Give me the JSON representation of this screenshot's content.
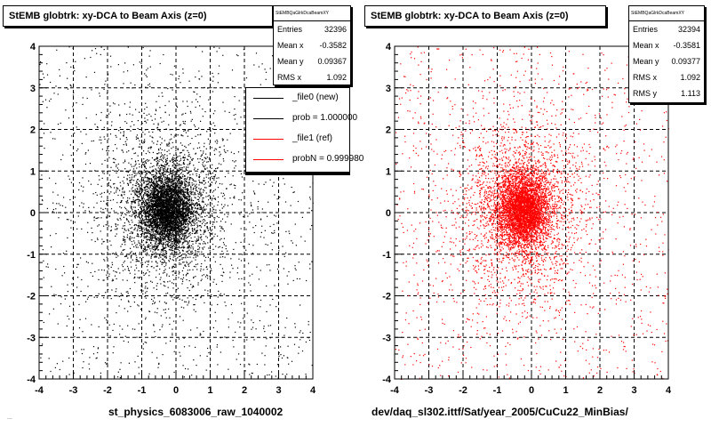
{
  "footer_text": "...",
  "chart_data": [
    {
      "type": "scatter",
      "title": "StEMB globtrk: xy-DCA to Beam Axis (z=0)",
      "xlabel": "st_physics_6083006_raw_1040002",
      "ylabel": "",
      "xlim": [
        -4,
        4
      ],
      "ylim": [
        -4,
        4
      ],
      "xticks": [
        "-4",
        "-3",
        "-2",
        "-1",
        "0",
        "1",
        "2",
        "3",
        "4"
      ],
      "yticks": [
        "-4",
        "-3",
        "-2",
        "-1",
        "0",
        "1",
        "2",
        "3",
        "4"
      ],
      "grid": true,
      "color": "#000000",
      "stats": {
        "name": "StEMBQaGlrkDcaBeamXY",
        "rows": [
          {
            "label": "Entries",
            "value": "32396"
          },
          {
            "label": "Mean x",
            "value": "-0.3582"
          },
          {
            "label": "Mean y",
            "value": "0.09367"
          },
          {
            "label": "RMS x",
            "value": "1.092"
          }
        ]
      },
      "legend": {
        "placement": "top-right",
        "entries": [
          {
            "label": "_file0 (new)",
            "color": "#000000"
          },
          {
            "label": "prob = 1.000000",
            "color": "#000000"
          },
          {
            "label": "_file1 (ref)",
            "color": "#ff0000"
          },
          {
            "label": "probN = 0.999980",
            "color": "#ff0000"
          }
        ]
      },
      "distribution": {
        "mean_x": -0.3582,
        "mean_y": 0.09367,
        "core_sigma": 0.45,
        "entries": 32396
      }
    },
    {
      "type": "scatter",
      "title": "StEMB globtrk: xy-DCA to Beam Axis (z=0)",
      "xlabel": "dev/daq_sl302.ittf/Sat/year_2005/CuCu22_MinBias/",
      "ylabel": "",
      "xlim": [
        -4,
        4
      ],
      "ylim": [
        -4,
        4
      ],
      "xticks": [
        "-4",
        "-3",
        "-2",
        "-1",
        "0",
        "1",
        "2",
        "3",
        "4"
      ],
      "yticks": [
        "-4",
        "-3",
        "-2",
        "-1",
        "0",
        "1",
        "2",
        "3",
        "4"
      ],
      "grid": true,
      "color": "#ff0000",
      "stats": {
        "name": "StEMBQaGlrkDcaBeamXY",
        "rows": [
          {
            "label": "Entries",
            "value": "32394"
          },
          {
            "label": "Mean x",
            "value": "-0.3581"
          },
          {
            "label": "Mean y",
            "value": "0.09377"
          },
          {
            "label": "RMS x",
            "value": "1.092"
          },
          {
            "label": "RMS y",
            "value": "1.113"
          }
        ]
      },
      "distribution": {
        "mean_x": -0.3581,
        "mean_y": 0.09377,
        "core_sigma": 0.45,
        "entries": 32394
      }
    }
  ]
}
